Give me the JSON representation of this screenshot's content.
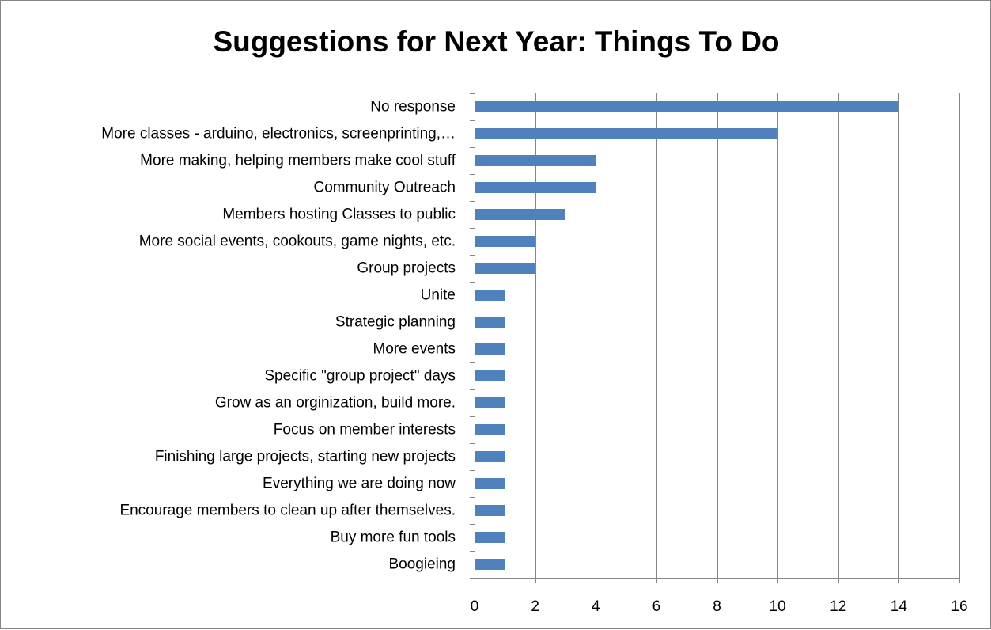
{
  "chart_data": {
    "type": "bar",
    "orientation": "horizontal",
    "title": "Suggestions for Next Year: Things To Do",
    "xlabel": "",
    "ylabel": "",
    "xlim": [
      0,
      16
    ],
    "xticks": [
      0,
      2,
      4,
      6,
      8,
      10,
      12,
      14,
      16
    ],
    "grid": true,
    "legend": "none",
    "bar_color": "#4F81BD",
    "gridline_color": "#868686",
    "categories": [
      "No response",
      "More classes - arduino, electronics, screenprinting,…",
      "More making, helping members make cool stuff",
      "Community Outreach",
      "Members hosting Classes to public",
      "More social events, cookouts, game nights, etc.",
      "Group projects",
      "Unite",
      "Strategic planning",
      "More events",
      "Specific \"group project\" days",
      "Grow as an orginization, build more.",
      "Focus on member interests",
      "Finishing large projects, starting new projects",
      "Everything we are doing now",
      "Encourage members to clean up after themselves.",
      "Buy more fun tools",
      "Boogieing"
    ],
    "values": [
      14,
      10,
      4,
      4,
      3,
      2,
      2,
      1,
      1,
      1,
      1,
      1,
      1,
      1,
      1,
      1,
      1,
      1
    ]
  }
}
